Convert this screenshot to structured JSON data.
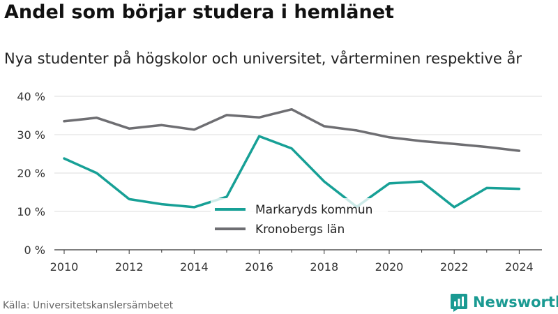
{
  "header": {
    "title": "Andel som börjar studera i hemlänet",
    "subtitle": "Nya studenter på högskolor och universitet, vårterminen respektive år"
  },
  "footer": {
    "source": "Källa: Universitetskanslersämbetet",
    "brand": "Newsworthy"
  },
  "colors": {
    "markaryd": "#17a096",
    "kronoberg": "#6e6e72",
    "grid": "#dddddd",
    "axis": "#333333",
    "brand": "#1a9a92"
  },
  "chart_data": {
    "type": "line",
    "x": [
      2010,
      2011,
      2012,
      2013,
      2014,
      2015,
      2016,
      2017,
      2018,
      2019,
      2020,
      2021,
      2022,
      2023,
      2024
    ],
    "xticks": [
      2010,
      2012,
      2014,
      2016,
      2018,
      2020,
      2022,
      2024
    ],
    "xtick_labels": [
      "2010",
      "2012",
      "2014",
      "2016",
      "2018",
      "2020",
      "2022",
      "2024"
    ],
    "yticks": [
      0,
      10,
      20,
      30,
      40
    ],
    "ytick_labels": [
      "0 %",
      "10 %",
      "20 %",
      "30 %",
      "40 %"
    ],
    "ylim": [
      0,
      40
    ],
    "xlim": [
      2009.7,
      2024.7
    ],
    "grid": true,
    "legend_position": "center-bottom",
    "series": [
      {
        "name": "Markaryds kommun",
        "color": "#17a096",
        "values": [
          23.8,
          20.0,
          13.2,
          11.9,
          11.1,
          13.8,
          29.6,
          26.4,
          17.8,
          11.2,
          17.3,
          17.8,
          11.1,
          16.1,
          15.9
        ]
      },
      {
        "name": "Kronobergs län",
        "color": "#6e6e72",
        "values": [
          33.5,
          34.4,
          31.6,
          32.5,
          31.3,
          35.1,
          34.5,
          36.6,
          32.2,
          31.1,
          29.3,
          28.3,
          27.6,
          26.8,
          25.8
        ]
      }
    ]
  }
}
